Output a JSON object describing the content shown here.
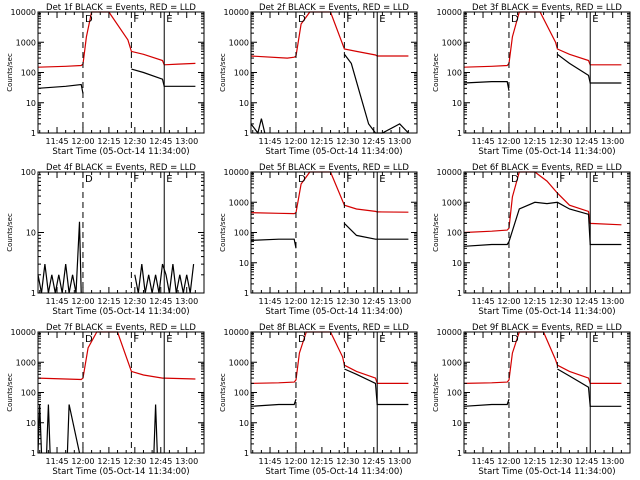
{
  "chart_data": [
    {
      "type": "line",
      "title": "Det 1f BLACK = Events, RED = LLD",
      "xlabel": "Start Time (05-Oct-14 11:34:00)",
      "ylabel": "Counts/sec",
      "yscale": "log",
      "ylim": [
        1,
        10000
      ],
      "x_ticks": [
        "11:45",
        "12:00",
        "12:15",
        "12:30",
        "12:45",
        "13:00"
      ],
      "y_ticks": [
        "1",
        "10",
        "100",
        "1000",
        "10000"
      ],
      "markers": [
        {
          "label": "D",
          "style": "dashed",
          "time": "12:00"
        },
        {
          "label": "F",
          "style": "dashed",
          "time": "12:28"
        },
        {
          "label": "E",
          "style": "solid",
          "time": "12:47"
        }
      ],
      "series": [
        {
          "color": "#d40000",
          "x": [
            "11:34",
            "11:50",
            "11:59",
            "12:00",
            "12:02",
            "12:05",
            "12:15",
            "12:26",
            "12:28",
            "12:35",
            "12:46",
            "12:47",
            "12:55",
            "13:05"
          ],
          "values": [
            150,
            160,
            170,
            190,
            1500,
            10000,
            10000,
            1200,
            500,
            400,
            250,
            180,
            190,
            200
          ]
        },
        {
          "color": "#000000",
          "x": [
            "11:34",
            "11:50",
            "11:59",
            "12:00",
            "12:27",
            "12:28",
            "12:35",
            "12:46",
            "12:47",
            "12:55",
            "13:05"
          ],
          "values": [
            30,
            35,
            40,
            20,
            null,
            130,
            100,
            60,
            35,
            35,
            35
          ]
        }
      ]
    },
    {
      "type": "line",
      "title": "Det 2f BLACK = Events, RED = LLD",
      "xlabel": "Start Time (05-Oct-14 11:34:00)",
      "ylabel": "Counts/sec",
      "yscale": "log",
      "ylim": [
        1,
        10000
      ],
      "x_ticks": [
        "11:45",
        "12:00",
        "12:15",
        "12:30",
        "12:45",
        "13:00"
      ],
      "y_ticks": [
        "1",
        "10",
        "100",
        "1000",
        "10000"
      ],
      "markers": [
        {
          "label": "D",
          "style": "dashed",
          "time": "12:00"
        },
        {
          "label": "F",
          "style": "dashed",
          "time": "12:28"
        },
        {
          "label": "E",
          "style": "solid",
          "time": "12:47"
        }
      ],
      "series": [
        {
          "color": "#d40000",
          "x": [
            "11:34",
            "11:55",
            "11:59",
            "12:00",
            "12:03",
            "12:08",
            "12:20",
            "12:28",
            "12:35",
            "12:46",
            "12:47",
            "13:05"
          ],
          "values": [
            350,
            300,
            320,
            350,
            4000,
            10000,
            10000,
            600,
            500,
            380,
            350,
            350
          ]
        },
        {
          "color": "#000000",
          "x": [
            "11:34",
            "11:38",
            "11:40",
            "11:42",
            "12:27",
            "12:28",
            "12:32",
            "12:37",
            "12:42",
            "12:46",
            "12:50",
            "13:00",
            "13:05"
          ],
          "values": [
            2,
            1,
            3,
            1,
            null,
            400,
            200,
            20,
            2,
            1,
            1,
            2,
            1
          ]
        }
      ]
    },
    {
      "type": "line",
      "title": "Det 3f BLACK = Events, RED = LLD",
      "xlabel": "Start Time (05-Oct-14 11:34:00)",
      "ylabel": "Counts/sec",
      "yscale": "log",
      "ylim": [
        1,
        10000
      ],
      "x_ticks": [
        "11:45",
        "12:00",
        "12:15",
        "12:30",
        "12:45",
        "13:00"
      ],
      "y_ticks": [
        "1",
        "10",
        "100",
        "1000",
        "10000"
      ],
      "markers": [
        {
          "label": "D",
          "style": "dashed",
          "time": "12:00"
        },
        {
          "label": "F",
          "style": "dashed",
          "time": "12:28"
        },
        {
          "label": "E",
          "style": "solid",
          "time": "12:47"
        }
      ],
      "series": [
        {
          "color": "#d40000",
          "x": [
            "11:34",
            "11:50",
            "11:59",
            "12:00",
            "12:02",
            "12:06",
            "12:18",
            "12:27",
            "12:28",
            "12:35",
            "12:46",
            "12:47",
            "13:05"
          ],
          "values": [
            150,
            160,
            170,
            200,
            1500,
            10000,
            10000,
            1000,
            600,
            400,
            250,
            180,
            180
          ]
        },
        {
          "color": "#000000",
          "x": [
            "11:34",
            "11:50",
            "11:59",
            "12:00",
            "12:27",
            "12:28",
            "12:35",
            "12:46",
            "12:47",
            "13:05"
          ],
          "values": [
            45,
            50,
            50,
            25,
            null,
            400,
            200,
            80,
            45,
            45
          ]
        }
      ]
    },
    {
      "type": "line",
      "title": "Det 4f BLACK = Events, RED = LLD",
      "xlabel": "Start Time (05-Oct-14 11:34:00)",
      "ylabel": "Counts/sec",
      "yscale": "log",
      "ylim": [
        1,
        100
      ],
      "x_ticks": [
        "11:45",
        "12:00",
        "12:15",
        "12:30",
        "12:45",
        "13:00"
      ],
      "y_ticks": [
        "1",
        "10",
        "100"
      ],
      "markers": [
        {
          "label": "D",
          "style": "dashed",
          "time": "12:00"
        },
        {
          "label": "F",
          "style": "dashed",
          "time": "12:28"
        },
        {
          "label": "E",
          "style": "solid",
          "time": "12:47"
        }
      ],
      "series": [
        {
          "color": "#000000",
          "x": [
            "11:34",
            "11:36",
            "11:38",
            "11:40",
            "11:42",
            "11:44",
            "11:46",
            "11:48",
            "11:50",
            "11:52",
            "11:54",
            "11:56",
            "11:58",
            "11:59",
            "12:28",
            "12:30",
            "12:32",
            "12:34",
            "12:36",
            "12:38",
            "12:40",
            "12:42",
            "12:44",
            "12:46",
            "12:48",
            "12:50",
            "12:52",
            "12:54",
            "12:56",
            "12:58",
            "13:00",
            "13:02",
            "13:04"
          ],
          "values": [
            2,
            1,
            3,
            1,
            2,
            1,
            2,
            1,
            3,
            1,
            2,
            1,
            15,
            1,
            null,
            2,
            1,
            3,
            1,
            2,
            1,
            2,
            1,
            3,
            2,
            1,
            3,
            1,
            2,
            1,
            2,
            1,
            3
          ]
        }
      ]
    },
    {
      "type": "line",
      "title": "Det 5f BLACK = Events, RED = LLD",
      "xlabel": "Start Time (05-Oct-14 11:34:00)",
      "ylabel": "Counts/sec",
      "yscale": "log",
      "ylim": [
        1,
        10000
      ],
      "x_ticks": [
        "11:45",
        "12:00",
        "12:15",
        "12:30",
        "12:45",
        "13:00"
      ],
      "y_ticks": [
        "1",
        "10",
        "100",
        "1000",
        "10000"
      ],
      "markers": [
        {
          "label": "D",
          "style": "dashed",
          "time": "12:00"
        },
        {
          "label": "F",
          "style": "dashed",
          "time": "12:28"
        },
        {
          "label": "E",
          "style": "solid",
          "time": "12:47"
        }
      ],
      "series": [
        {
          "color": "#d40000",
          "x": [
            "11:34",
            "11:50",
            "11:59",
            "12:00",
            "12:03",
            "12:08",
            "12:20",
            "12:28",
            "12:35",
            "12:46",
            "12:47",
            "13:05"
          ],
          "values": [
            450,
            430,
            420,
            450,
            4000,
            10000,
            10000,
            800,
            600,
            500,
            480,
            470
          ]
        },
        {
          "color": "#000000",
          "x": [
            "11:34",
            "11:50",
            "11:59",
            "12:00",
            "12:27",
            "12:28",
            "12:35",
            "12:46",
            "12:47",
            "13:05"
          ],
          "values": [
            55,
            60,
            60,
            30,
            null,
            200,
            80,
            60,
            60,
            60
          ]
        }
      ]
    },
    {
      "type": "line",
      "title": "Det 6f BLACK = Events, RED = LLD",
      "xlabel": "Start Time (05-Oct-14 11:34:00)",
      "ylabel": "Counts/sec",
      "yscale": "log",
      "ylim": [
        1,
        10000
      ],
      "x_ticks": [
        "11:45",
        "12:00",
        "12:15",
        "12:30",
        "12:45",
        "13:00"
      ],
      "y_ticks": [
        "1",
        "10",
        "100",
        "1000",
        "10000"
      ],
      "markers": [
        {
          "label": "D",
          "style": "dashed",
          "time": "12:00"
        },
        {
          "label": "F",
          "style": "dashed",
          "time": "12:28"
        },
        {
          "label": "E",
          "style": "solid",
          "time": "12:47"
        }
      ],
      "series": [
        {
          "color": "#d40000",
          "x": [
            "11:34",
            "11:50",
            "11:59",
            "12:00",
            "12:02",
            "12:06",
            "12:15",
            "12:22",
            "12:28",
            "12:35",
            "12:46",
            "12:47",
            "13:05"
          ],
          "values": [
            100,
            110,
            120,
            140,
            1500,
            10000,
            10000,
            5000,
            2000,
            800,
            500,
            200,
            180
          ]
        },
        {
          "color": "#000000",
          "x": [
            "11:34",
            "11:50",
            "11:59",
            "12:00",
            "12:06",
            "12:15",
            "12:22",
            "12:28",
            "12:35",
            "12:46",
            "12:47",
            "13:05"
          ],
          "values": [
            35,
            40,
            40,
            50,
            600,
            1000,
            900,
            1000,
            600,
            400,
            40,
            40
          ]
        }
      ]
    },
    {
      "type": "line",
      "title": "Det 7f BLACK = Events, RED = LLD",
      "xlabel": "Start Time (05-Oct-14 11:34:00)",
      "ylabel": "Counts/sec",
      "yscale": "log",
      "ylim": [
        1,
        10000
      ],
      "x_ticks": [
        "11:45",
        "12:00",
        "12:15",
        "12:30",
        "12:45",
        "13:00"
      ],
      "y_ticks": [
        "1",
        "10",
        "100",
        "1000",
        "10000"
      ],
      "markers": [
        {
          "label": "D",
          "style": "dashed",
          "time": "12:00"
        },
        {
          "label": "F",
          "style": "dashed",
          "time": "12:28"
        },
        {
          "label": "E",
          "style": "solid",
          "time": "12:47"
        }
      ],
      "series": [
        {
          "color": "#d40000",
          "x": [
            "11:34",
            "11:50",
            "11:59",
            "12:00",
            "12:03",
            "12:08",
            "12:20",
            "12:28",
            "12:35",
            "12:46",
            "12:47",
            "13:05"
          ],
          "values": [
            300,
            280,
            270,
            300,
            3000,
            10000,
            10000,
            500,
            380,
            300,
            300,
            280
          ]
        },
        {
          "color": "#000000",
          "x": [
            "11:34",
            "11:35",
            "11:36",
            "11:37",
            "11:39",
            "11:40",
            "11:41",
            "11:50",
            "11:51",
            "11:52",
            "11:58",
            "12:28",
            "12:41",
            "12:42",
            "12:43",
            "12:44",
            "12:45"
          ],
          "values": [
            1,
            40,
            1,
            null,
            1,
            40,
            1,
            null,
            1,
            40,
            1,
            null,
            1,
            40,
            1,
            null,
            1
          ]
        }
      ]
    },
    {
      "type": "line",
      "title": "Det 8f BLACK = Events, RED = LLD",
      "xlabel": "Start Time (05-Oct-14 11:34:00)",
      "ylabel": "Counts/sec",
      "yscale": "log",
      "ylim": [
        1,
        10000
      ],
      "x_ticks": [
        "11:45",
        "12:00",
        "12:15",
        "12:30",
        "12:45",
        "13:00"
      ],
      "y_ticks": [
        "1",
        "10",
        "100",
        "1000",
        "10000"
      ],
      "markers": [
        {
          "label": "D",
          "style": "dashed",
          "time": "12:00"
        },
        {
          "label": "F",
          "style": "dashed",
          "time": "12:28"
        },
        {
          "label": "E",
          "style": "solid",
          "time": "12:47"
        }
      ],
      "series": [
        {
          "color": "#d40000",
          "x": [
            "11:34",
            "11:50",
            "11:59",
            "12:00",
            "12:02",
            "12:06",
            "12:20",
            "12:27",
            "12:28",
            "12:35",
            "12:46",
            "12:47",
            "13:05"
          ],
          "values": [
            200,
            210,
            220,
            260,
            2000,
            10000,
            10000,
            1500,
            800,
            500,
            300,
            200,
            200
          ]
        },
        {
          "color": "#000000",
          "x": [
            "11:34",
            "11:50",
            "11:59",
            "12:00",
            "12:27",
            "12:28",
            "12:35",
            "12:46",
            "12:47",
            "13:05"
          ],
          "values": [
            35,
            40,
            40,
            60,
            null,
            600,
            400,
            200,
            40,
            40
          ]
        }
      ]
    },
    {
      "type": "line",
      "title": "Det 9f BLACK = Events, RED = LLD",
      "xlabel": "Start Time (05-Oct-14 11:34:00)",
      "ylabel": "Counts/sec",
      "yscale": "log",
      "ylim": [
        1,
        10000
      ],
      "x_ticks": [
        "11:45",
        "12:00",
        "12:15",
        "12:30",
        "12:45",
        "13:00"
      ],
      "y_ticks": [
        "1",
        "10",
        "100",
        "1000",
        "10000"
      ],
      "markers": [
        {
          "label": "D",
          "style": "dashed",
          "time": "12:00"
        },
        {
          "label": "F",
          "style": "dashed",
          "time": "12:28"
        },
        {
          "label": "E",
          "style": "solid",
          "time": "12:47"
        }
      ],
      "series": [
        {
          "color": "#d40000",
          "x": [
            "11:34",
            "11:50",
            "11:59",
            "12:00",
            "12:02",
            "12:06",
            "12:20",
            "12:27",
            "12:28",
            "12:35",
            "12:46",
            "12:47",
            "13:05"
          ],
          "values": [
            200,
            210,
            220,
            260,
            2000,
            10000,
            10000,
            1200,
            800,
            500,
            300,
            200,
            200
          ]
        },
        {
          "color": "#000000",
          "x": [
            "11:34",
            "11:50",
            "11:59",
            "12:00",
            "12:27",
            "12:28",
            "12:35",
            "12:46",
            "12:47",
            "13:05"
          ],
          "values": [
            35,
            40,
            40,
            60,
            null,
            600,
            350,
            150,
            35,
            35
          ]
        }
      ]
    }
  ]
}
